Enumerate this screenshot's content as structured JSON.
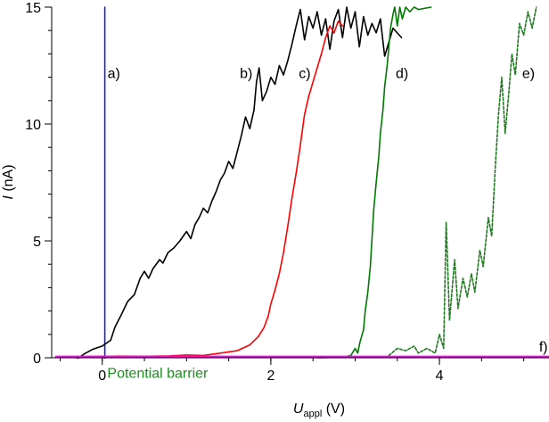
{
  "chart_data": {
    "type": "line",
    "xlabel": {
      "italic": "U",
      "sub": "appl",
      "unit": " (V)"
    },
    "ylabel": {
      "italic": "I",
      "unit": " (nA)"
    },
    "xlim": [
      -0.6,
      5.3
    ],
    "ylim": [
      0,
      15
    ],
    "x_ticks": [
      0,
      2,
      4
    ],
    "y_ticks": [
      0,
      5,
      10,
      15
    ],
    "x_minor_step": 0.5,
    "y_minor_step": 1,
    "grid": false,
    "colors": {
      "axis": "#000000",
      "a": "#1a1ae6",
      "b": "#000000",
      "c": "#ff0000",
      "d": "#007a00",
      "e": "#1f7a1f",
      "f": "#ff00ff",
      "annotation": "#1f8a1f"
    },
    "annotations": [
      {
        "text": "Potential barrier",
        "x": 0.06,
        "y": -0.55
      }
    ],
    "series": [
      {
        "label": "a)",
        "label_at": [
          0.03,
          12.2
        ],
        "color_key": "a",
        "dash": false,
        "points": [
          [
            0.03,
            -0.1
          ],
          [
            0.03,
            15
          ]
        ]
      },
      {
        "label": "b)",
        "label_at": [
          1.6,
          12.2
        ],
        "color_key": "b",
        "dash": false,
        "points": [
          [
            -0.3,
            -0.05
          ],
          [
            -0.22,
            0.15
          ],
          [
            -0.12,
            0.35
          ],
          [
            0,
            0.5
          ],
          [
            0.1,
            0.75
          ],
          [
            0.15,
            1.3
          ],
          [
            0.22,
            1.8
          ],
          [
            0.3,
            2.4
          ],
          [
            0.38,
            2.7
          ],
          [
            0.45,
            3.4
          ],
          [
            0.5,
            3.7
          ],
          [
            0.55,
            3.4
          ],
          [
            0.6,
            3.8
          ],
          [
            0.68,
            4.2
          ],
          [
            0.72,
            4.05
          ],
          [
            0.78,
            4.5
          ],
          [
            0.85,
            4.7
          ],
          [
            0.92,
            5.0
          ],
          [
            1.0,
            5.4
          ],
          [
            1.05,
            5.1
          ],
          [
            1.1,
            5.7
          ],
          [
            1.15,
            6.0
          ],
          [
            1.2,
            6.4
          ],
          [
            1.25,
            6.2
          ],
          [
            1.3,
            6.7
          ],
          [
            1.35,
            7.1
          ],
          [
            1.4,
            7.6
          ],
          [
            1.45,
            7.9
          ],
          [
            1.5,
            8.4
          ],
          [
            1.55,
            8.1
          ],
          [
            1.6,
            8.8
          ],
          [
            1.65,
            9.5
          ],
          [
            1.7,
            10.3
          ],
          [
            1.75,
            9.8
          ],
          [
            1.8,
            10.6
          ],
          [
            1.83,
            11.8
          ],
          [
            1.86,
            12.4
          ],
          [
            1.9,
            11.0
          ],
          [
            1.95,
            11.4
          ],
          [
            2.0,
            12.0
          ],
          [
            2.05,
            11.7
          ],
          [
            2.1,
            12.5
          ],
          [
            2.15,
            12.1
          ],
          [
            2.2,
            12.7
          ],
          [
            2.25,
            13.4
          ],
          [
            2.3,
            14.2
          ],
          [
            2.35,
            14.9
          ],
          [
            2.4,
            13.6
          ],
          [
            2.45,
            14.6
          ],
          [
            2.5,
            14.1
          ],
          [
            2.55,
            14.8
          ],
          [
            2.6,
            13.8
          ],
          [
            2.65,
            14.5
          ],
          [
            2.7,
            13.2
          ],
          [
            2.75,
            14.4
          ],
          [
            2.8,
            14.9
          ],
          [
            2.85,
            13.7
          ],
          [
            2.9,
            15
          ],
          [
            2.95,
            14.1
          ],
          [
            3.0,
            14.8
          ],
          [
            3.05,
            13.3
          ],
          [
            3.1,
            14.6
          ],
          [
            3.15,
            13.8
          ],
          [
            3.2,
            14.3
          ],
          [
            3.25,
            13.9
          ],
          [
            3.3,
            14.5
          ],
          [
            3.35,
            12.9
          ],
          [
            3.4,
            13.5
          ],
          [
            3.45,
            14.1
          ],
          [
            3.55,
            13.7
          ]
        ]
      },
      {
        "label": "c)",
        "label_at": [
          2.3,
          12.2
        ],
        "color_key": "c",
        "dash": false,
        "points": [
          [
            -0.5,
            0.05
          ],
          [
            -0.2,
            0.05
          ],
          [
            0.2,
            0.07
          ],
          [
            0.5,
            0.06
          ],
          [
            0.8,
            0.08
          ],
          [
            1.0,
            0.12
          ],
          [
            1.2,
            0.1
          ],
          [
            1.4,
            0.2
          ],
          [
            1.6,
            0.3
          ],
          [
            1.75,
            0.55
          ],
          [
            1.85,
            0.9
          ],
          [
            1.92,
            1.3
          ],
          [
            1.97,
            1.8
          ],
          [
            2.0,
            2.3
          ],
          [
            2.05,
            2.9
          ],
          [
            2.1,
            3.6
          ],
          [
            2.15,
            4.5
          ],
          [
            2.2,
            5.6
          ],
          [
            2.25,
            6.8
          ],
          [
            2.3,
            7.9
          ],
          [
            2.35,
            9.1
          ],
          [
            2.4,
            10.4
          ],
          [
            2.45,
            11.2
          ],
          [
            2.5,
            11.8
          ],
          [
            2.55,
            12.4
          ],
          [
            2.6,
            13.0
          ],
          [
            2.65,
            13.7
          ],
          [
            2.7,
            14.2
          ],
          [
            2.75,
            13.9
          ],
          [
            2.8,
            14.4
          ],
          [
            2.85,
            14.2
          ]
        ]
      },
      {
        "label": "d)",
        "label_at": [
          3.45,
          12.2
        ],
        "color_key": "d",
        "dash": false,
        "points": [
          [
            2.55,
            0.0
          ],
          [
            2.85,
            0.02
          ],
          [
            2.95,
            0.1
          ],
          [
            3.0,
            0.4
          ],
          [
            3.03,
            0.2
          ],
          [
            3.06,
            0.7
          ],
          [
            3.1,
            1.2
          ],
          [
            3.12,
            2.0
          ],
          [
            3.15,
            2.8
          ],
          [
            3.18,
            3.9
          ],
          [
            3.2,
            5.1
          ],
          [
            3.22,
            6.3
          ],
          [
            3.25,
            7.5
          ],
          [
            3.28,
            8.6
          ],
          [
            3.3,
            9.6
          ],
          [
            3.33,
            10.6
          ],
          [
            3.35,
            11.6
          ],
          [
            3.38,
            12.5
          ],
          [
            3.4,
            13.3
          ],
          [
            3.42,
            14.1
          ],
          [
            3.45,
            14.7
          ],
          [
            3.47,
            15
          ],
          [
            3.5,
            14.2
          ],
          [
            3.53,
            15
          ],
          [
            3.56,
            14.5
          ],
          [
            3.6,
            15
          ],
          [
            3.65,
            14.8
          ],
          [
            3.7,
            15
          ],
          [
            3.75,
            14.9
          ],
          [
            3.9,
            15
          ]
        ]
      },
      {
        "label": "e)",
        "label_at": [
          4.95,
          12.2
        ],
        "color_key": "e",
        "dash": true,
        "points": [
          [
            3.4,
            0.1
          ],
          [
            3.5,
            0.4
          ],
          [
            3.6,
            0.3
          ],
          [
            3.7,
            0.5
          ],
          [
            3.75,
            0.2
          ],
          [
            3.85,
            0.4
          ],
          [
            3.95,
            0.2
          ],
          [
            4.0,
            1.0
          ],
          [
            4.05,
            0.4
          ],
          [
            4.08,
            5.8
          ],
          [
            4.12,
            1.6
          ],
          [
            4.18,
            4.2
          ],
          [
            4.22,
            2.1
          ],
          [
            4.28,
            3.4
          ],
          [
            4.33,
            2.6
          ],
          [
            4.38,
            3.6
          ],
          [
            4.42,
            2.8
          ],
          [
            4.48,
            4.6
          ],
          [
            4.52,
            3.9
          ],
          [
            4.58,
            6.0
          ],
          [
            4.62,
            5.2
          ],
          [
            4.66,
            8.0
          ],
          [
            4.7,
            10.4
          ],
          [
            4.74,
            12.0
          ],
          [
            4.78,
            9.6
          ],
          [
            4.82,
            11.2
          ],
          [
            4.86,
            13.0
          ],
          [
            4.9,
            12.1
          ],
          [
            4.95,
            14.3
          ],
          [
            5.0,
            13.8
          ],
          [
            5.05,
            14.8
          ],
          [
            5.1,
            14.1
          ],
          [
            5.15,
            15
          ]
        ]
      },
      {
        "label": "f)",
        "label_at": [
          5.15,
          0.5
        ],
        "color_key": "f",
        "dash": false,
        "points": [
          [
            -0.55,
            0.05
          ],
          [
            5.3,
            0.05
          ]
        ]
      }
    ]
  }
}
